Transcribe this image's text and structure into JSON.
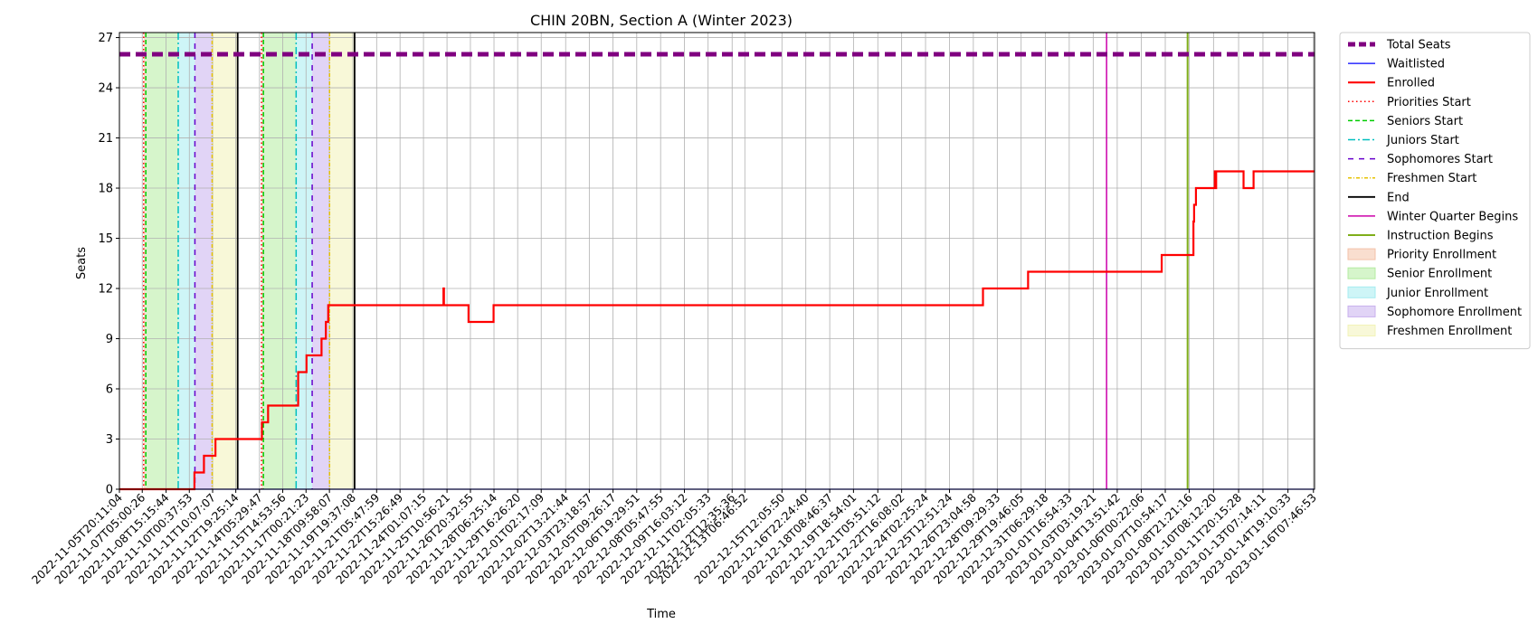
{
  "chart_data": {
    "type": "line",
    "title": "CHIN 20BN, Section A (Winter 2023)",
    "xlabel": "Time",
    "ylabel": "Seats",
    "ylim": [
      0,
      27.3
    ],
    "yticks": [
      0,
      3,
      6,
      9,
      12,
      15,
      18,
      21,
      24,
      27
    ],
    "x_ticks": [
      {
        "label": "2022-11-05T20:11:04",
        "day": 0.0
      },
      {
        "label": "2022-11-07T05:00:26",
        "day": 1.367
      },
      {
        "label": "2022-11-08T15:15:44",
        "day": 2.794
      },
      {
        "label": "2022-11-10T00:37:53",
        "day": 4.185
      },
      {
        "label": "2022-11-11T10:07:07",
        "day": 5.58
      },
      {
        "label": "2022-11-12T19:25:14",
        "day": 6.967
      },
      {
        "label": "2022-11-14T05:29:47",
        "day": 8.386
      },
      {
        "label": "2022-11-15T14:53:56",
        "day": 9.778
      },
      {
        "label": "2022-11-17T00:21:23",
        "day": 11.172
      },
      {
        "label": "2022-11-18T09:58:07",
        "day": 12.573
      },
      {
        "label": "2022-11-19T19:37:08",
        "day": 13.975
      },
      {
        "label": "2022-11-21T05:47:59",
        "day": 15.399
      },
      {
        "label": "2022-11-22T15:26:49",
        "day": 16.8
      },
      {
        "label": "2022-11-24T01:07:15",
        "day": 18.203
      },
      {
        "label": "2022-11-25T10:56:21",
        "day": 19.612
      },
      {
        "label": "2022-11-26T20:32:55",
        "day": 21.014
      },
      {
        "label": "2022-11-28T06:25:14",
        "day": 22.425
      },
      {
        "label": "2022-11-29T16:26:20",
        "day": 23.842
      },
      {
        "label": "2022-12-01T02:17:09",
        "day": 25.252
      },
      {
        "label": "2022-12-02T13:21:44",
        "day": 26.715
      },
      {
        "label": "2022-12-03T23:18:57",
        "day": 28.13
      },
      {
        "label": "2022-12-05T09:26:17",
        "day": 29.552
      },
      {
        "label": "2022-12-06T19:29:51",
        "day": 30.971
      },
      {
        "label": "2022-12-08T05:47:55",
        "day": 32.4
      },
      {
        "label": "2022-12-09T16:03:12",
        "day": 33.825
      },
      {
        "label": "2022-12-11T02:05:33",
        "day": 35.244
      },
      {
        "label": "2022-12-12T12:35:36",
        "day": 36.682
      },
      {
        "label": "2022-12-13T06:46:52",
        "day": 37.442
      },
      {
        "label": "2022-12-15T12:05:50",
        "day": 39.664
      },
      {
        "label": "2022-12-16T22:24:40",
        "day": 41.094
      },
      {
        "label": "2022-12-18T08:46:37",
        "day": 42.526
      },
      {
        "label": "2022-12-19T18:54:01",
        "day": 43.947
      },
      {
        "label": "2022-12-21T05:51:12",
        "day": 45.404
      },
      {
        "label": "2022-12-22T16:08:02",
        "day": 46.832
      },
      {
        "label": "2022-12-24T02:25:24",
        "day": 48.261
      },
      {
        "label": "2022-12-25T12:51:24",
        "day": 49.696
      },
      {
        "label": "2022-12-26T23:04:58",
        "day": 51.123
      },
      {
        "label": "2022-12-28T09:29:33",
        "day": 52.557
      },
      {
        "label": "2022-12-29T19:46:05",
        "day": 53.985
      },
      {
        "label": "2022-12-31T06:29:18",
        "day": 55.43
      },
      {
        "label": "2023-01-01T16:54:33",
        "day": 56.864
      },
      {
        "label": "2023-01-03T03:19:21",
        "day": 58.298
      },
      {
        "label": "2023-01-04T13:51:42",
        "day": 59.737
      },
      {
        "label": "2023-01-06T00:22:06",
        "day": 61.175
      },
      {
        "label": "2023-01-07T10:54:17",
        "day": 62.614
      },
      {
        "label": "2023-01-08T21:21:16",
        "day": 64.05
      },
      {
        "label": "2023-01-10T08:12:20",
        "day": 65.502
      },
      {
        "label": "2023-01-11T20:15:28",
        "day": 67.004
      },
      {
        "label": "2023-01-13T07:14:11",
        "day": 68.461
      },
      {
        "label": "2023-01-14T19:10:33",
        "day": 69.959
      },
      {
        "label": "2023-01-16T07:46:53",
        "day": 71.484
      }
    ],
    "x_range_days": [
      0.0,
      71.55
    ],
    "grid": true,
    "legend_placement": "outside right, top",
    "total_seats": 26,
    "waitlisted": [
      [
        0.0,
        0
      ],
      [
        71.55,
        0
      ]
    ],
    "enrolled": [
      [
        0.0,
        0
      ],
      [
        4.49,
        0
      ],
      [
        4.49,
        1
      ],
      [
        5.06,
        1
      ],
      [
        5.06,
        2
      ],
      [
        5.75,
        2
      ],
      [
        5.75,
        3
      ],
      [
        8.53,
        3
      ],
      [
        8.53,
        4
      ],
      [
        8.9,
        4
      ],
      [
        8.9,
        5
      ],
      [
        10.7,
        5
      ],
      [
        10.7,
        7
      ],
      [
        11.2,
        7
      ],
      [
        11.2,
        8
      ],
      [
        12.1,
        8
      ],
      [
        12.1,
        9
      ],
      [
        12.36,
        9
      ],
      [
        12.36,
        10
      ],
      [
        12.5,
        10
      ],
      [
        12.5,
        11
      ],
      [
        19.4,
        11
      ],
      [
        19.4,
        12
      ],
      [
        19.43,
        12
      ],
      [
        19.43,
        11
      ],
      [
        20.9,
        11
      ],
      [
        20.9,
        10
      ],
      [
        22.4,
        10
      ],
      [
        22.4,
        11
      ],
      [
        51.7,
        11
      ],
      [
        51.7,
        12
      ],
      [
        54.4,
        12
      ],
      [
        54.4,
        13
      ],
      [
        62.4,
        13
      ],
      [
        62.4,
        14
      ],
      [
        64.3,
        14
      ],
      [
        64.3,
        16
      ],
      [
        64.34,
        16
      ],
      [
        64.34,
        17
      ],
      [
        64.45,
        17
      ],
      [
        64.45,
        18
      ],
      [
        65.58,
        18
      ],
      [
        65.58,
        19
      ],
      [
        65.62,
        19
      ],
      [
        65.62,
        18
      ],
      [
        65.66,
        18
      ],
      [
        65.66,
        19
      ],
      [
        67.3,
        19
      ],
      [
        67.3,
        18
      ],
      [
        67.9,
        18
      ],
      [
        67.9,
        19
      ],
      [
        71.55,
        19
      ]
    ],
    "phase_lines": {
      "priorities_start": [
        1.45,
        8.51
      ],
      "seniors_start": [
        1.58,
        8.62
      ],
      "juniors_start": [
        3.52,
        10.58
      ],
      "sophomores_start": [
        4.52,
        11.54
      ],
      "freshmen_start": [
        5.55,
        12.58
      ],
      "end": [
        7.08,
        14.08
      ],
      "winter_quarter_begins": [
        59.1
      ],
      "instruction_begins": [
        63.95
      ]
    },
    "phase_bands": [
      {
        "type": "priority",
        "from": 1.45,
        "to": 1.58
      },
      {
        "type": "senior",
        "from": 1.58,
        "to": 3.52
      },
      {
        "type": "junior",
        "from": 3.52,
        "to": 4.52
      },
      {
        "type": "sophomore",
        "from": 4.52,
        "to": 5.55
      },
      {
        "type": "freshmen",
        "from": 5.55,
        "to": 7.08
      },
      {
        "type": "priority",
        "from": 8.51,
        "to": 8.62
      },
      {
        "type": "senior",
        "from": 8.62,
        "to": 10.58
      },
      {
        "type": "junior",
        "from": 10.58,
        "to": 11.54
      },
      {
        "type": "sophomore",
        "from": 11.54,
        "to": 12.58
      },
      {
        "type": "freshmen",
        "from": 12.58,
        "to": 14.08
      }
    ],
    "legend": [
      {
        "key": "total",
        "label": "Total Seats",
        "kind": "line",
        "color": "#800080",
        "dash": "12,6",
        "width": 5
      },
      {
        "key": "waitlisted",
        "label": "Waitlisted",
        "kind": "line",
        "color": "#0000ff",
        "dash": "",
        "width": 1.2
      },
      {
        "key": "enrolled",
        "label": "Enrolled",
        "kind": "line",
        "color": "#ff0000",
        "dash": "",
        "width": 2.2
      },
      {
        "key": "priorities_start",
        "label": "Priorities Start",
        "kind": "line",
        "color": "#ff0000",
        "dash": "1.5,3",
        "width": 1.5
      },
      {
        "key": "seniors_start",
        "label": "Seniors Start",
        "kind": "line",
        "color": "#00cc00",
        "dash": "5,3",
        "width": 1.5
      },
      {
        "key": "juniors_start",
        "label": "Juniors Start",
        "kind": "line",
        "color": "#00bfbf",
        "dash": "8,3,2,3",
        "width": 1.5
      },
      {
        "key": "sophomores_start",
        "label": "Sophomores Start",
        "kind": "line",
        "color": "#6600cc",
        "dash": "6,6",
        "width": 1.5
      },
      {
        "key": "freshmen_start",
        "label": "Freshmen Start",
        "kind": "line",
        "color": "#e6c200",
        "dash": "4,2,1,2",
        "width": 1.5
      },
      {
        "key": "end",
        "label": "End",
        "kind": "line",
        "color": "#000000",
        "dash": "",
        "width": 1.8
      },
      {
        "key": "winter_quarter_begins",
        "label": "Winter Quarter Begins",
        "kind": "line",
        "color": "#cc00aa",
        "dash": "",
        "width": 1.5
      },
      {
        "key": "instruction_begins",
        "label": "Instruction Begins",
        "kind": "line",
        "color": "#7fae1a",
        "dash": "",
        "width": 2
      },
      {
        "key": "priority",
        "label": "Priority Enrollment",
        "kind": "patch",
        "color": "#f4c2a8"
      },
      {
        "key": "senior",
        "label": "Senior Enrollment",
        "kind": "patch",
        "color": "#b4eca0"
      },
      {
        "key": "junior",
        "label": "Junior Enrollment",
        "kind": "patch",
        "color": "#a6ecf0"
      },
      {
        "key": "sophomore",
        "label": "Sophomore Enrollment",
        "kind": "patch",
        "color": "#c9b1ee"
      },
      {
        "key": "freshmen",
        "label": "Freshmen Enrollment",
        "kind": "patch",
        "color": "#f2f3b8"
      }
    ]
  }
}
